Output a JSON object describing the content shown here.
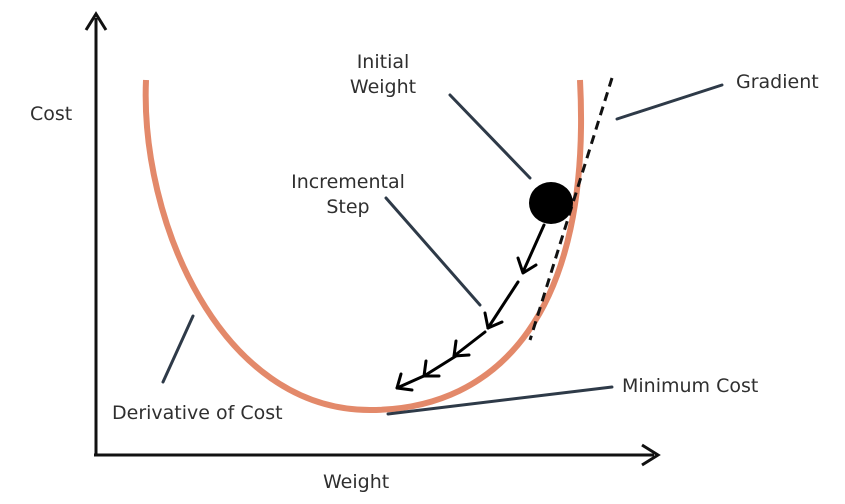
{
  "labels": {
    "y_axis": "Cost",
    "x_axis": "Weight",
    "initial_weight_line1": "Initial",
    "initial_weight_line2": "Weight",
    "gradient": "Gradient",
    "incremental_step_line1": "Incremental",
    "incremental_step_line2": "Step",
    "minimum_cost": "Minimum Cost",
    "derivative_of_cost": "Derivative of Cost"
  },
  "colors": {
    "curve": "#e3896a",
    "axis": "#111111",
    "leader_line": "#2e3a48",
    "ball": "#000000",
    "text": "#2f2f2f"
  }
}
